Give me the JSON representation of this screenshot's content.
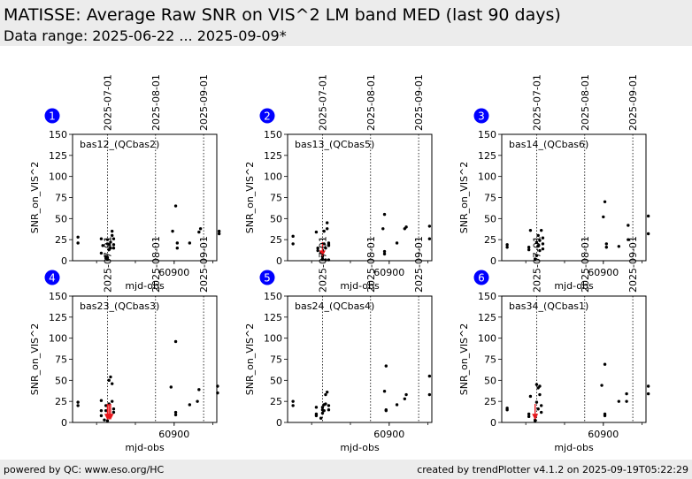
{
  "header": {
    "title": "MATISSE: Average Raw SNR on VIS^2 LM band MED (last 90 days)",
    "subtitle": "Data range: 2025-06-22 ... 2025-09-09*"
  },
  "footer": {
    "left": "powered by QC: www.eso.org/HC",
    "right": "created by trendPlotter v4.1.2 on 2025-09-19T05:22:29"
  },
  "colors": {
    "marker": "#000000",
    "flag_marker": "#e8161b",
    "badge": "#0000ff",
    "header_bg": "#ececec"
  },
  "chart_data": [
    {
      "type": "scatter",
      "badge": "1",
      "label": "bas12_(QCbas2)",
      "xlabel": "mjd-obs",
      "ylabel": "SNR_on_VIS^2",
      "xlim": [
        60834.5,
        60927.5
      ],
      "ylim": [
        0,
        150
      ],
      "xticks": [
        60900
      ],
      "yticks": [
        0,
        25,
        50,
        75,
        100,
        125,
        150
      ],
      "date_markers": [
        {
          "x": 60857,
          "label": "2025-07-01"
        },
        {
          "x": 60888,
          "label": "2025-08-01"
        },
        {
          "x": 60919,
          "label": "2025-09-01"
        }
      ],
      "points": [
        [
          60838,
          28
        ],
        [
          60838,
          21
        ],
        [
          60853,
          26
        ],
        [
          60853,
          9
        ],
        [
          60854,
          18
        ],
        [
          60856,
          3
        ],
        [
          60856,
          5
        ],
        [
          60857,
          2
        ],
        [
          60857,
          4
        ],
        [
          60857,
          20
        ],
        [
          60857,
          25
        ],
        [
          60858,
          13
        ],
        [
          60858,
          19
        ],
        [
          60859,
          15
        ],
        [
          60859,
          22
        ],
        [
          60860,
          30
        ],
        [
          60860,
          35
        ],
        [
          60861,
          26
        ],
        [
          60861,
          19
        ],
        [
          60861,
          15
        ],
        [
          60899,
          35
        ],
        [
          60901,
          65
        ],
        [
          60902,
          21
        ],
        [
          60902,
          15
        ],
        [
          60910,
          21
        ],
        [
          60916,
          34
        ],
        [
          60917,
          38
        ],
        [
          60929,
          35
        ],
        [
          60929,
          32
        ]
      ],
      "flagged": []
    },
    {
      "type": "scatter",
      "badge": "2",
      "label": "bas13_(QCbas5)",
      "xlabel": "mjd-obs",
      "ylabel": "SNR_on_VIS^2",
      "xlim": [
        60834.5,
        60927.5
      ],
      "ylim": [
        0,
        150
      ],
      "xticks": [
        60900
      ],
      "yticks": [
        0,
        25,
        50,
        75,
        100,
        125,
        150
      ],
      "date_markers": [
        {
          "x": 60857,
          "label": "2025-07-01"
        },
        {
          "x": 60888,
          "label": "2025-08-01"
        },
        {
          "x": 60919,
          "label": "2025-09-01"
        }
      ],
      "points": [
        [
          60838,
          29
        ],
        [
          60838,
          20
        ],
        [
          60853,
          34
        ],
        [
          60854,
          15
        ],
        [
          60854,
          12
        ],
        [
          60856,
          10
        ],
        [
          60857,
          2
        ],
        [
          60857,
          5
        ],
        [
          60858,
          20
        ],
        [
          60858,
          35
        ],
        [
          60859,
          1
        ],
        [
          60859,
          15
        ],
        [
          60860,
          38
        ],
        [
          60860,
          45
        ],
        [
          60861,
          18
        ],
        [
          60861,
          21
        ],
        [
          60861,
          19
        ],
        [
          60861,
          1
        ],
        [
          60896,
          38
        ],
        [
          60897,
          55
        ],
        [
          60897,
          8
        ],
        [
          60897,
          11
        ],
        [
          60905,
          21
        ],
        [
          60910,
          38
        ],
        [
          60911,
          40
        ],
        [
          60926,
          41
        ],
        [
          60926,
          26
        ]
      ],
      "flagged": [
        {
          "x": 60857,
          "y": 8,
          "from": 22
        }
      ]
    },
    {
      "type": "scatter",
      "badge": "3",
      "label": "bas14_(QCbas6)",
      "xlabel": "mjd-obs",
      "ylabel": "SNR_on_VIS^2",
      "xlim": [
        60834.5,
        60927.5
      ],
      "ylim": [
        0,
        150
      ],
      "xticks": [
        60900
      ],
      "yticks": [
        0,
        25,
        50,
        75,
        100,
        125,
        150
      ],
      "date_markers": [
        {
          "x": 60857,
          "label": "2025-07-01"
        },
        {
          "x": 60888,
          "label": "2025-08-01"
        },
        {
          "x": 60919,
          "label": "2025-09-01"
        }
      ],
      "points": [
        [
          60838,
          19
        ],
        [
          60838,
          16
        ],
        [
          60852,
          16
        ],
        [
          60852,
          13
        ],
        [
          60853,
          36
        ],
        [
          60856,
          2
        ],
        [
          60857,
          22
        ],
        [
          60857,
          6
        ],
        [
          60858,
          18
        ],
        [
          60858,
          30
        ],
        [
          60859,
          24
        ],
        [
          60859,
          12
        ],
        [
          60860,
          36
        ],
        [
          60861,
          20
        ],
        [
          60861,
          27
        ],
        [
          60861,
          14
        ],
        [
          60900,
          52
        ],
        [
          60901,
          70
        ],
        [
          60902,
          20
        ],
        [
          60902,
          16
        ],
        [
          60910,
          17
        ],
        [
          60916,
          42
        ],
        [
          60916,
          25
        ],
        [
          60929,
          53
        ],
        [
          60929,
          32
        ]
      ],
      "flagged": []
    },
    {
      "type": "scatter",
      "badge": "4",
      "label": "bas23_(QCbas3)",
      "xlabel": "mjd-obs",
      "ylabel": "SNR_on_VIS^2",
      "xlim": [
        60834.5,
        60927.5
      ],
      "ylim": [
        0,
        150
      ],
      "xticks": [
        60900
      ],
      "yticks": [
        0,
        25,
        50,
        75,
        100,
        125,
        150
      ],
      "date_markers": [
        {
          "x": 60857,
          "label": "2025-07-01"
        },
        {
          "x": 60888,
          "label": "2025-08-01"
        },
        {
          "x": 60919,
          "label": "2025-09-01"
        }
      ],
      "points": [
        [
          60838,
          24
        ],
        [
          60838,
          20
        ],
        [
          60853,
          26
        ],
        [
          60853,
          14
        ],
        [
          60853,
          8
        ],
        [
          60855,
          3
        ],
        [
          60856,
          14
        ],
        [
          60856,
          20
        ],
        [
          60857,
          2
        ],
        [
          60858,
          50
        ],
        [
          60858,
          22
        ],
        [
          60859,
          54
        ],
        [
          60860,
          46
        ],
        [
          60860,
          25
        ],
        [
          60861,
          16
        ],
        [
          60861,
          12
        ],
        [
          60898,
          42
        ],
        [
          60901,
          96
        ],
        [
          60901,
          12
        ],
        [
          60901,
          9
        ],
        [
          60910,
          21
        ],
        [
          60915,
          25
        ],
        [
          60916,
          39
        ],
        [
          60928,
          43
        ],
        [
          60928,
          35
        ]
      ],
      "flagged": [
        {
          "x": 60857,
          "y": 6,
          "from": 22
        },
        {
          "x": 60858,
          "y": 6,
          "from": 22
        },
        {
          "x": 60859,
          "y": 6,
          "from": 22
        }
      ]
    },
    {
      "type": "scatter",
      "badge": "5",
      "label": "bas24_(QCbas4)",
      "xlabel": "mjd-obs",
      "ylabel": "SNR_on_VIS^2",
      "xlim": [
        60834.5,
        60927.5
      ],
      "ylim": [
        0,
        150
      ],
      "xticks": [
        60900
      ],
      "yticks": [
        0,
        25,
        50,
        75,
        100,
        125,
        150
      ],
      "date_markers": [
        {
          "x": 60857,
          "label": "2025-07-01"
        },
        {
          "x": 60888,
          "label": "2025-08-01"
        },
        {
          "x": 60919,
          "label": "2025-09-01"
        }
      ],
      "points": [
        [
          60838,
          25
        ],
        [
          60838,
          20
        ],
        [
          60853,
          18
        ],
        [
          60853,
          10
        ],
        [
          60853,
          8
        ],
        [
          60856,
          5
        ],
        [
          60857,
          18
        ],
        [
          60857,
          11
        ],
        [
          60857,
          15
        ],
        [
          60858,
          21
        ],
        [
          60858,
          14
        ],
        [
          60859,
          22
        ],
        [
          60859,
          33
        ],
        [
          60860,
          36
        ],
        [
          60861,
          20
        ],
        [
          60861,
          15
        ],
        [
          60897,
          37
        ],
        [
          60898,
          67
        ],
        [
          60898,
          15
        ],
        [
          60898,
          14
        ],
        [
          60905,
          21
        ],
        [
          60910,
          28
        ],
        [
          60911,
          33
        ],
        [
          60926,
          55
        ],
        [
          60926,
          33
        ]
      ],
      "flagged": []
    },
    {
      "type": "scatter",
      "badge": "6",
      "label": "bas34_(QCbas1)",
      "xlabel": "mjd-obs",
      "ylabel": "SNR_on_VIS^2",
      "xlim": [
        60834.5,
        60927.5
      ],
      "ylim": [
        0,
        150
      ],
      "xticks": [
        60900
      ],
      "yticks": [
        0,
        25,
        50,
        75,
        100,
        125,
        150
      ],
      "date_markers": [
        {
          "x": 60857,
          "label": "2025-07-01"
        },
        {
          "x": 60888,
          "label": "2025-08-01"
        },
        {
          "x": 60919,
          "label": "2025-09-01"
        }
      ],
      "points": [
        [
          60838,
          17
        ],
        [
          60838,
          15
        ],
        [
          60852,
          10
        ],
        [
          60852,
          7
        ],
        [
          60853,
          31
        ],
        [
          60856,
          2
        ],
        [
          60856,
          3
        ],
        [
          60857,
          45
        ],
        [
          60857,
          24
        ],
        [
          60858,
          41
        ],
        [
          60858,
          16
        ],
        [
          60859,
          43
        ],
        [
          60859,
          33
        ],
        [
          60860,
          20
        ],
        [
          60860,
          12
        ],
        [
          60899,
          44
        ],
        [
          60901,
          69
        ],
        [
          60901,
          10
        ],
        [
          60901,
          8
        ],
        [
          60910,
          25
        ],
        [
          60915,
          34
        ],
        [
          60915,
          25
        ],
        [
          60929,
          43
        ],
        [
          60929,
          34
        ]
      ],
      "flagged": [
        {
          "x": 60856,
          "y": 6,
          "from": 22
        }
      ]
    }
  ]
}
